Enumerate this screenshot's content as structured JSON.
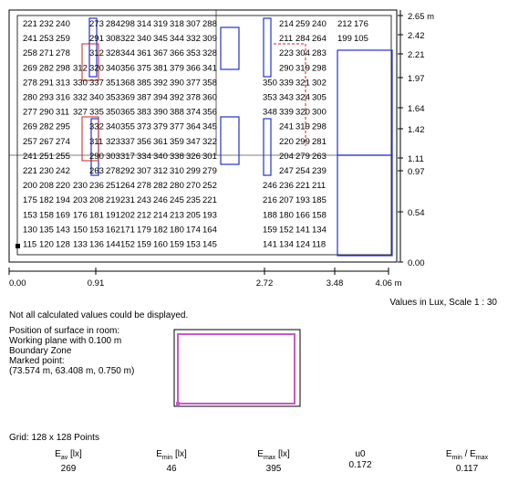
{
  "grid_values": [
    [
      "221",
      "232",
      "240",
      "",
      "273",
      "284",
      "298",
      "314",
      "319",
      "318",
      "307",
      "288",
      "",
      "214",
      "259",
      "240",
      "212",
      "176"
    ],
    [
      "241",
      "253",
      "259",
      "",
      "291",
      "308",
      "322",
      "340",
      "345",
      "344",
      "332",
      "309",
      "",
      "211",
      "284",
      "264",
      "199",
      "105"
    ],
    [
      "258",
      "271",
      "278",
      "",
      "312",
      "328",
      "344",
      "361",
      "367",
      "366",
      "353",
      "328",
      "",
      "223",
      "304",
      "283",
      "",
      ""
    ],
    [
      "269",
      "282",
      "298",
      "312",
      "320",
      "340",
      "356",
      "375",
      "381",
      "379",
      "366",
      "341",
      "",
      "290",
      "319",
      "298",
      "",
      ""
    ],
    [
      "278",
      "291",
      "313",
      "330",
      "337",
      "351",
      "368",
      "385",
      "392",
      "390",
      "377",
      "358",
      "350",
      "339",
      "321",
      "302",
      "",
      ""
    ],
    [
      "280",
      "293",
      "316",
      "332",
      "340",
      "353",
      "369",
      "387",
      "394",
      "392",
      "378",
      "360",
      "353",
      "343",
      "324",
      "305",
      "",
      ""
    ],
    [
      "277",
      "290",
      "311",
      "327",
      "335",
      "350",
      "365",
      "383",
      "390",
      "388",
      "374",
      "356",
      "348",
      "339",
      "320",
      "300",
      "",
      ""
    ],
    [
      "269",
      "282",
      "295",
      "",
      "332",
      "340",
      "355",
      "373",
      "379",
      "377",
      "364",
      "345",
      "",
      "241",
      "319",
      "298",
      "",
      ""
    ],
    [
      "257",
      "267",
      "274",
      "",
      "311",
      "323",
      "337",
      "356",
      "361",
      "359",
      "347",
      "322",
      "",
      "220",
      "299",
      "281",
      "",
      ""
    ],
    [
      "241",
      "251",
      "255",
      "",
      "290",
      "303",
      "317",
      "334",
      "340",
      "338",
      "326",
      "301",
      "",
      "204",
      "279",
      "263",
      "",
      ""
    ],
    [
      "221",
      "230",
      "242",
      "",
      "263",
      "278",
      "292",
      "307",
      "312",
      "310",
      "299",
      "279",
      "",
      "247",
      "254",
      "239",
      "",
      ""
    ],
    [
      "200",
      "208",
      "220",
      "230",
      "236",
      "251",
      "264",
      "278",
      "282",
      "280",
      "270",
      "252",
      "246",
      "236",
      "221",
      "211",
      "",
      ""
    ],
    [
      "175",
      "182",
      "194",
      "203",
      "208",
      "219",
      "231",
      "243",
      "246",
      "245",
      "235",
      "221",
      "216",
      "207",
      "193",
      "185",
      "",
      ""
    ],
    [
      "153",
      "158",
      "169",
      "176",
      "181",
      "191",
      "202",
      "212",
      "214",
      "213",
      "205",
      "193",
      "188",
      "180",
      "166",
      "158",
      "",
      ""
    ],
    [
      "130",
      "135",
      "143",
      "150",
      "153",
      "162",
      "171",
      "179",
      "182",
      "180",
      "174",
      "164",
      "159",
      "152",
      "141",
      "134",
      "",
      ""
    ],
    [
      "115",
      "120",
      "128",
      "133",
      "136",
      "144",
      "152",
      "159",
      "160",
      "159",
      "153",
      "145",
      "141",
      "134",
      "124",
      "118",
      "",
      ""
    ]
  ],
  "y_scale": [
    "2.65 m",
    "2.42",
    "2.21",
    "1.97",
    "1.64",
    "1.42",
    "1.11",
    "0.97",
    "0.54",
    "0.00"
  ],
  "x_scale": [
    "0.00",
    "0.91",
    "2.72",
    "3.48",
    "4.06 m"
  ],
  "scale_note": "Values in Lux, Scale 1 : 30",
  "warning": "Not all calculated values could be displayed.",
  "surface_info": [
    "Position of surface in room:",
    "Working plane with 0.100 m",
    "Boundary Zone",
    "Marked point:",
    "(73.574 m, 63.408 m, 0.750 m)"
  ],
  "grid_info": "Grid: 128 x 128 Points",
  "stats": [
    {
      "label": "E",
      "sub": "av",
      "unit": " [lx]",
      "value": "269"
    },
    {
      "label": "E",
      "sub": "min",
      "unit": " [lx]",
      "value": "46"
    },
    {
      "label": "E",
      "sub": "max",
      "unit": " [lx]",
      "value": "395"
    },
    {
      "label": "u0",
      "sub": "",
      "unit": "",
      "value": "0.172"
    },
    {
      "label": "E",
      "sub": "min",
      "unit": " / E",
      "sub2": "max",
      "value": "0.117"
    }
  ],
  "colors": {
    "blue": "#2233cc",
    "red": "#cc2222",
    "magenta": "#cc55cc",
    "line": "#000000"
  }
}
